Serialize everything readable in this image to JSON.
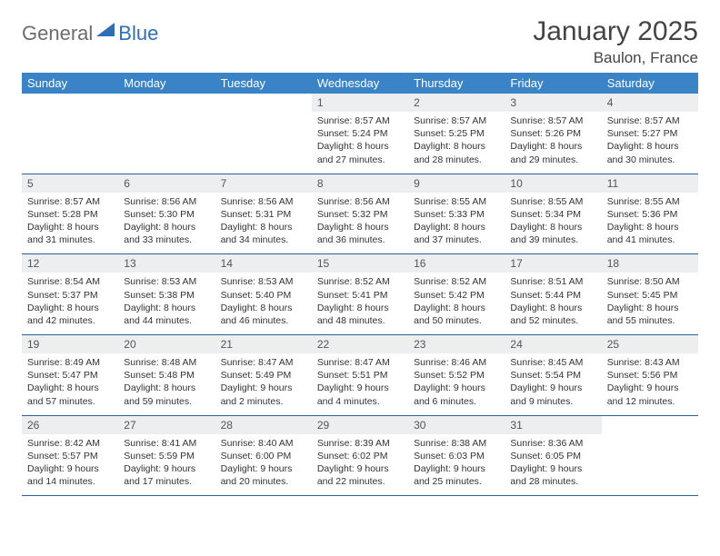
{
  "logo": {
    "text1": "General",
    "text2": "Blue"
  },
  "title": "January 2025",
  "location": "Baulon, France",
  "colors": {
    "header_bg": "#3b83c7",
    "header_text": "#ffffff",
    "daynum_bg": "#eceef0",
    "row_border": "#2d5f9a",
    "logo_gray": "#6d6d6d",
    "logo_blue": "#2d6fb5"
  },
  "weekday_labels": [
    "Sunday",
    "Monday",
    "Tuesday",
    "Wednesday",
    "Thursday",
    "Friday",
    "Saturday"
  ],
  "weeks": [
    [
      null,
      null,
      null,
      {
        "n": "1",
        "sunrise": "Sunrise: 8:57 AM",
        "sunset": "Sunset: 5:24 PM",
        "daylight": "Daylight: 8 hours and 27 minutes."
      },
      {
        "n": "2",
        "sunrise": "Sunrise: 8:57 AM",
        "sunset": "Sunset: 5:25 PM",
        "daylight": "Daylight: 8 hours and 28 minutes."
      },
      {
        "n": "3",
        "sunrise": "Sunrise: 8:57 AM",
        "sunset": "Sunset: 5:26 PM",
        "daylight": "Daylight: 8 hours and 29 minutes."
      },
      {
        "n": "4",
        "sunrise": "Sunrise: 8:57 AM",
        "sunset": "Sunset: 5:27 PM",
        "daylight": "Daylight: 8 hours and 30 minutes."
      }
    ],
    [
      {
        "n": "5",
        "sunrise": "Sunrise: 8:57 AM",
        "sunset": "Sunset: 5:28 PM",
        "daylight": "Daylight: 8 hours and 31 minutes."
      },
      {
        "n": "6",
        "sunrise": "Sunrise: 8:56 AM",
        "sunset": "Sunset: 5:30 PM",
        "daylight": "Daylight: 8 hours and 33 minutes."
      },
      {
        "n": "7",
        "sunrise": "Sunrise: 8:56 AM",
        "sunset": "Sunset: 5:31 PM",
        "daylight": "Daylight: 8 hours and 34 minutes."
      },
      {
        "n": "8",
        "sunrise": "Sunrise: 8:56 AM",
        "sunset": "Sunset: 5:32 PM",
        "daylight": "Daylight: 8 hours and 36 minutes."
      },
      {
        "n": "9",
        "sunrise": "Sunrise: 8:55 AM",
        "sunset": "Sunset: 5:33 PM",
        "daylight": "Daylight: 8 hours and 37 minutes."
      },
      {
        "n": "10",
        "sunrise": "Sunrise: 8:55 AM",
        "sunset": "Sunset: 5:34 PM",
        "daylight": "Daylight: 8 hours and 39 minutes."
      },
      {
        "n": "11",
        "sunrise": "Sunrise: 8:55 AM",
        "sunset": "Sunset: 5:36 PM",
        "daylight": "Daylight: 8 hours and 41 minutes."
      }
    ],
    [
      {
        "n": "12",
        "sunrise": "Sunrise: 8:54 AM",
        "sunset": "Sunset: 5:37 PM",
        "daylight": "Daylight: 8 hours and 42 minutes."
      },
      {
        "n": "13",
        "sunrise": "Sunrise: 8:53 AM",
        "sunset": "Sunset: 5:38 PM",
        "daylight": "Daylight: 8 hours and 44 minutes."
      },
      {
        "n": "14",
        "sunrise": "Sunrise: 8:53 AM",
        "sunset": "Sunset: 5:40 PM",
        "daylight": "Daylight: 8 hours and 46 minutes."
      },
      {
        "n": "15",
        "sunrise": "Sunrise: 8:52 AM",
        "sunset": "Sunset: 5:41 PM",
        "daylight": "Daylight: 8 hours and 48 minutes."
      },
      {
        "n": "16",
        "sunrise": "Sunrise: 8:52 AM",
        "sunset": "Sunset: 5:42 PM",
        "daylight": "Daylight: 8 hours and 50 minutes."
      },
      {
        "n": "17",
        "sunrise": "Sunrise: 8:51 AM",
        "sunset": "Sunset: 5:44 PM",
        "daylight": "Daylight: 8 hours and 52 minutes."
      },
      {
        "n": "18",
        "sunrise": "Sunrise: 8:50 AM",
        "sunset": "Sunset: 5:45 PM",
        "daylight": "Daylight: 8 hours and 55 minutes."
      }
    ],
    [
      {
        "n": "19",
        "sunrise": "Sunrise: 8:49 AM",
        "sunset": "Sunset: 5:47 PM",
        "daylight": "Daylight: 8 hours and 57 minutes."
      },
      {
        "n": "20",
        "sunrise": "Sunrise: 8:48 AM",
        "sunset": "Sunset: 5:48 PM",
        "daylight": "Daylight: 8 hours and 59 minutes."
      },
      {
        "n": "21",
        "sunrise": "Sunrise: 8:47 AM",
        "sunset": "Sunset: 5:49 PM",
        "daylight": "Daylight: 9 hours and 2 minutes."
      },
      {
        "n": "22",
        "sunrise": "Sunrise: 8:47 AM",
        "sunset": "Sunset: 5:51 PM",
        "daylight": "Daylight: 9 hours and 4 minutes."
      },
      {
        "n": "23",
        "sunrise": "Sunrise: 8:46 AM",
        "sunset": "Sunset: 5:52 PM",
        "daylight": "Daylight: 9 hours and 6 minutes."
      },
      {
        "n": "24",
        "sunrise": "Sunrise: 8:45 AM",
        "sunset": "Sunset: 5:54 PM",
        "daylight": "Daylight: 9 hours and 9 minutes."
      },
      {
        "n": "25",
        "sunrise": "Sunrise: 8:43 AM",
        "sunset": "Sunset: 5:56 PM",
        "daylight": "Daylight: 9 hours and 12 minutes."
      }
    ],
    [
      {
        "n": "26",
        "sunrise": "Sunrise: 8:42 AM",
        "sunset": "Sunset: 5:57 PM",
        "daylight": "Daylight: 9 hours and 14 minutes."
      },
      {
        "n": "27",
        "sunrise": "Sunrise: 8:41 AM",
        "sunset": "Sunset: 5:59 PM",
        "daylight": "Daylight: 9 hours and 17 minutes."
      },
      {
        "n": "28",
        "sunrise": "Sunrise: 8:40 AM",
        "sunset": "Sunset: 6:00 PM",
        "daylight": "Daylight: 9 hours and 20 minutes."
      },
      {
        "n": "29",
        "sunrise": "Sunrise: 8:39 AM",
        "sunset": "Sunset: 6:02 PM",
        "daylight": "Daylight: 9 hours and 22 minutes."
      },
      {
        "n": "30",
        "sunrise": "Sunrise: 8:38 AM",
        "sunset": "Sunset: 6:03 PM",
        "daylight": "Daylight: 9 hours and 25 minutes."
      },
      {
        "n": "31",
        "sunrise": "Sunrise: 8:36 AM",
        "sunset": "Sunset: 6:05 PM",
        "daylight": "Daylight: 9 hours and 28 minutes."
      },
      null
    ]
  ]
}
